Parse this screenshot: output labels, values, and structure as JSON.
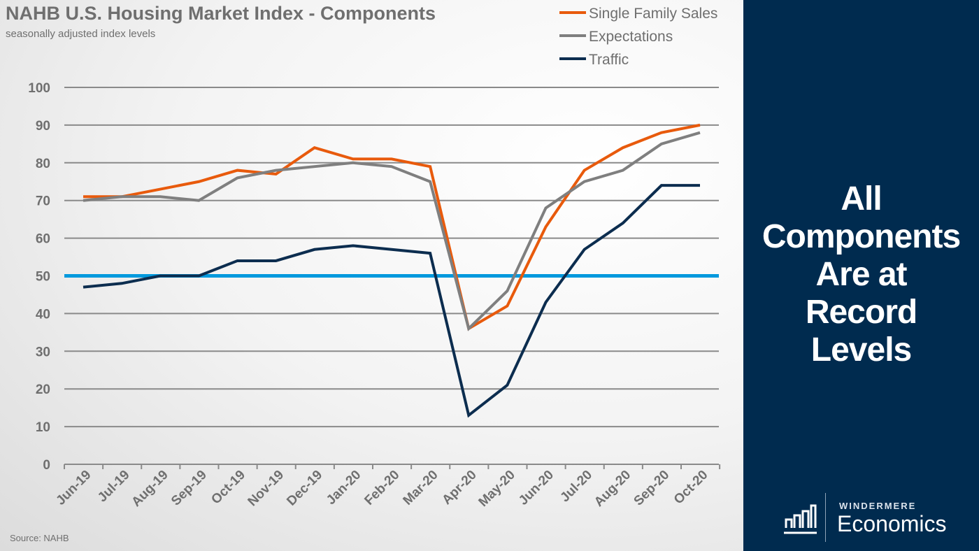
{
  "slide": {
    "title": "NAHB U.S. Housing Market Index - Components",
    "subtitle": "seasonally adjusted index levels",
    "source": "Source: NAHB"
  },
  "panel": {
    "headline_lines": [
      "All",
      "Components",
      "Are at",
      "Record",
      "Levels"
    ],
    "background": "#002b4f"
  },
  "logo": {
    "small": "WINDERMERE",
    "large": "Economics",
    "icon": "bar-chart-icon"
  },
  "chart_data": {
    "type": "line",
    "title": "NAHB U.S. Housing Market Index - Components",
    "subtitle": "seasonally adjusted index levels",
    "categories": [
      "Jun-19",
      "Jul-19",
      "Aug-19",
      "Sep-19",
      "Oct-19",
      "Nov-19",
      "Dec-19",
      "Jan-20",
      "Feb-20",
      "Mar-20",
      "Apr-20",
      "May-20",
      "Jun-20",
      "Jul-20",
      "Aug-20",
      "Sep-20",
      "Oct-20"
    ],
    "ylim": [
      0,
      100
    ],
    "yticks": [
      0,
      10,
      20,
      30,
      40,
      50,
      60,
      70,
      80,
      90,
      100
    ],
    "grid": true,
    "legend": "top-right",
    "reference_line": {
      "value": 50,
      "color": "#0099dd"
    },
    "series": [
      {
        "name": "Single Family Sales",
        "color": "#e85a0c",
        "values": [
          71,
          71,
          73,
          75,
          78,
          77,
          84,
          81,
          81,
          79,
          36,
          42,
          63,
          78,
          84,
          88,
          90
        ]
      },
      {
        "name": "Expectations",
        "color": "#7f7f7f",
        "values": [
          70,
          71,
          71,
          70,
          76,
          78,
          79,
          80,
          79,
          75,
          36,
          46,
          68,
          75,
          78,
          85,
          88
        ]
      },
      {
        "name": "Traffic",
        "color": "#0c2d4f",
        "values": [
          47,
          48,
          50,
          50,
          54,
          54,
          57,
          58,
          57,
          56,
          13,
          21,
          43,
          57,
          64,
          74,
          74
        ]
      }
    ]
  }
}
